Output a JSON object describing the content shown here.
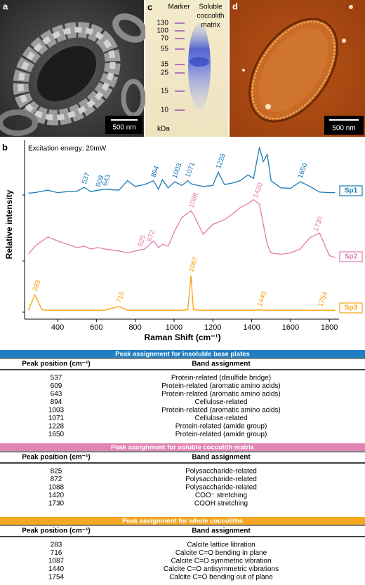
{
  "panels": {
    "a": {
      "label": "a",
      "scale_bar": "500 nm"
    },
    "b": {
      "label": "b"
    },
    "c": {
      "label": "c",
      "marker": "Marker",
      "lane": [
        "Soluble",
        "coccolith",
        "matrix"
      ],
      "ladder": [
        130,
        100,
        70,
        55,
        35,
        25,
        15,
        10
      ],
      "unit": "kDa"
    },
    "d": {
      "label": "d",
      "scale_bar": "500 nm"
    }
  },
  "chart_data": {
    "type": "line",
    "annotation": "Excitation energy: 20mW",
    "x_label": "Raman Shift (cm⁻¹)",
    "y_label": "Relative intensity",
    "xlim": [
      230,
      1850
    ],
    "xticks": [
      400,
      600,
      800,
      1000,
      1200,
      1400,
      1600,
      1800
    ],
    "x": [
      250,
      283,
      320,
      350,
      400,
      450,
      500,
      537,
      570,
      609,
      643,
      716,
      760,
      800,
      850,
      894,
      920,
      940,
      970,
      1003,
      1040,
      1071,
      1087,
      1100,
      1150,
      1200,
      1228,
      1260,
      1300,
      1340,
      1380,
      1410,
      1440,
      1460,
      1480,
      1500,
      1550,
      1600,
      1650,
      1700,
      1750,
      1800,
      1830
    ],
    "series": [
      {
        "name": "Sp1",
        "color": "#1a7ab5",
        "values": [
          0.04,
          0.05,
          0.08,
          0.1,
          0.05,
          0.07,
          0.08,
          0.16,
          0.07,
          0.1,
          0.12,
          0.1,
          0.3,
          0.18,
          0.22,
          0.3,
          0.12,
          0.32,
          0.15,
          0.28,
          0.2,
          0.3,
          0.24,
          0.22,
          0.18,
          0.2,
          0.48,
          0.22,
          0.25,
          0.3,
          0.42,
          0.35,
          1.0,
          0.7,
          0.85,
          0.3,
          0.15,
          0.14,
          0.28,
          0.18,
          0.06,
          0.05,
          0.05
        ],
        "peaks": [
          537,
          609,
          643,
          894,
          1003,
          1071,
          1228,
          1650
        ]
      },
      {
        "name": "Sp2",
        "color": "#e07bb0",
        "values": [
          0.1,
          0.22,
          0.3,
          0.36,
          0.3,
          0.25,
          0.2,
          0.22,
          0.18,
          0.2,
          0.18,
          0.15,
          0.12,
          0.15,
          0.18,
          0.3,
          0.2,
          0.25,
          0.22,
          0.45,
          0.65,
          0.72,
          0.75,
          0.7,
          0.4,
          0.55,
          0.58,
          0.62,
          0.7,
          0.8,
          0.86,
          0.92,
          0.85,
          0.55,
          0.25,
          0.12,
          0.1,
          0.12,
          0.18,
          0.35,
          0.42,
          0.08,
          0.05
        ],
        "peaks": [
          825,
          872,
          1088,
          1420,
          1730
        ]
      },
      {
        "name": "Sp3",
        "color": "#f5a30e",
        "values": [
          0.05,
          0.45,
          0.06,
          0.05,
          0.05,
          0.05,
          0.05,
          0.05,
          0.05,
          0.05,
          0.05,
          0.15,
          0.05,
          0.05,
          0.05,
          0.05,
          0.05,
          0.05,
          0.05,
          0.05,
          0.05,
          0.06,
          0.95,
          0.06,
          0.05,
          0.05,
          0.05,
          0.05,
          0.05,
          0.05,
          0.05,
          0.05,
          0.06,
          0.05,
          0.05,
          0.05,
          0.05,
          0.05,
          0.05,
          0.05,
          0.05,
          0.05,
          0.05
        ],
        "peaks": [
          283,
          716,
          1087,
          1440,
          1754
        ]
      }
    ]
  },
  "tables": [
    {
      "title": "Peak assignment for insoluble base plates",
      "color": "#1f7fc1",
      "columns": [
        "Peak position (cm⁻¹)",
        "Band assignment"
      ],
      "rows": [
        [
          537,
          "Protein-related (disulfide bridge)"
        ],
        [
          609,
          "Protein-related (aromatic amino acids)"
        ],
        [
          643,
          "Protein-related (aromatic amino acids)"
        ],
        [
          894,
          "Cellulose-related"
        ],
        [
          1003,
          "Protein-related (aromatic amino acids)"
        ],
        [
          1071,
          "Cellulose-related"
        ],
        [
          1228,
          "Protein-related (amide group)"
        ],
        [
          1650,
          "Protein-related (amide group)"
        ]
      ]
    },
    {
      "title": "Peak assignment for soluble coccolith matrix",
      "color": "#e184b4",
      "columns": [
        "Peak position (cm⁻¹)",
        "Band assignment"
      ],
      "rows": [
        [
          825,
          "Polysaccharide-related"
        ],
        [
          872,
          "Polysaccharide-related"
        ],
        [
          1088,
          "Polysaccharide-related"
        ],
        [
          1420,
          "COO⁻ stretching"
        ],
        [
          1730,
          "COOH stretching"
        ]
      ]
    },
    {
      "title": "Peak assignment for whole coccoliths",
      "color": "#f5a623",
      "columns": [
        "Peak position (cm⁻¹)",
        "Band assignment"
      ],
      "rows": [
        [
          283,
          "Calcite lattice libration"
        ],
        [
          716,
          "Calcite C=O bending in plane"
        ],
        [
          1087,
          "Calcite C=O symmetric vibration"
        ],
        [
          1440,
          "Calcite C=O antisymmetric vibrations"
        ],
        [
          1754,
          "Calcite C=O bending out of plane"
        ]
      ]
    }
  ]
}
